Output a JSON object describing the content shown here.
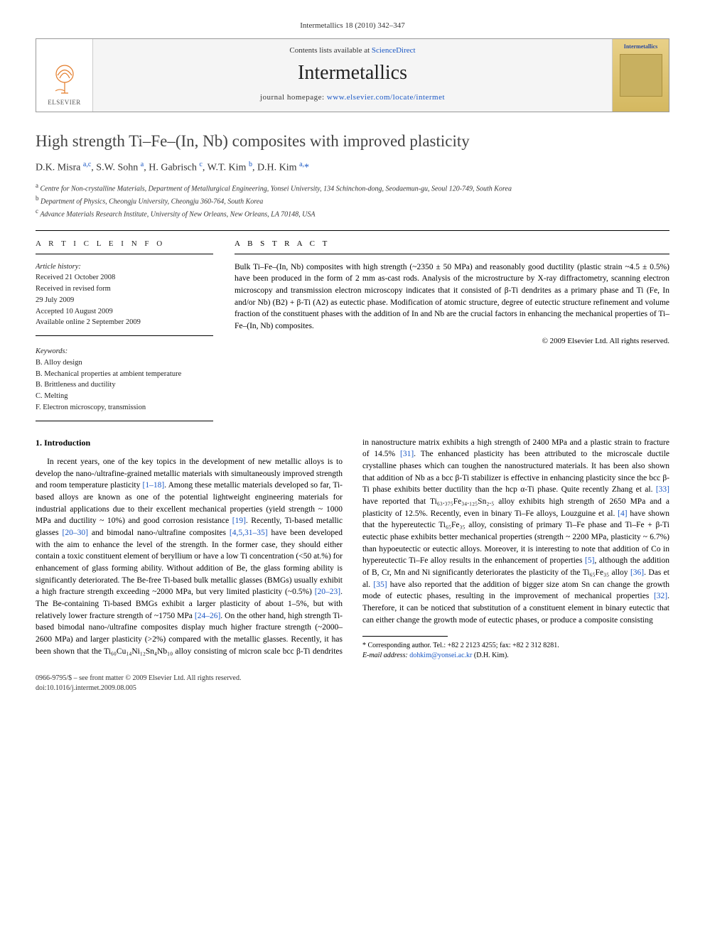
{
  "header": {
    "citation": "Intermetallics 18 (2010) 342–347"
  },
  "banner": {
    "publisher": "ELSEVIER",
    "contents_prefix": "Contents lists available at ",
    "contents_link": "ScienceDirect",
    "journal": "Intermetallics",
    "homepage_prefix": "journal homepage: ",
    "homepage_url": "www.elsevier.com/locate/intermet",
    "cover_label": "Intermetallics"
  },
  "title": "High strength Ti–Fe–(In, Nb) composites with improved plasticity",
  "authors_html": "D.K. Misra <sup>a,c</sup>, S.W. Sohn <sup>a</sup>, H. Gabrisch <sup>c</sup>, W.T. Kim <sup>b</sup>, D.H. Kim <sup>a,</sup><span class='star'>*</span>",
  "affiliations": {
    "a": "Centre for Non-crystalline Materials, Department of Metallurgical Engineering, Yonsei University, 134 Schinchon-dong, Seodaemun-gu, Seoul 120-749, South Korea",
    "b": "Department of Physics, Cheongju University, Cheongju 360-764, South Korea",
    "c": "Advance Materials Research Institute, University of New Orleans, New Orleans, LA 70148, USA"
  },
  "article_info": {
    "heading": "A R T I C L E   I N F O",
    "history_label": "Article history:",
    "history": [
      "Received 21 October 2008",
      "Received in revised form",
      "29 July 2009",
      "Accepted 10 August 2009",
      "Available online 2 September 2009"
    ],
    "keywords_label": "Keywords:",
    "keywords": [
      "B. Alloy design",
      "B. Mechanical properties at ambient temperature",
      "B. Brittleness and ductility",
      "C. Melting",
      "F. Electron microscopy, transmission"
    ]
  },
  "abstract": {
    "heading": "A B S T R A C T",
    "text": "Bulk Ti–Fe–(In, Nb) composites with high strength (~2350 ± 50 MPa) and reasonably good ductility (plastic strain ~4.5 ± 0.5%) have been produced in the form of 2 mm as-cast rods. Analysis of the microstructure by X-ray diffractometry, scanning electron microscopy and transmission electron microscopy indicates that it consisted of β-Ti dendrites as a primary phase and Ti (Fe, In and/or Nb) (B2) + β-Ti (A2) as eutectic phase. Modification of atomic structure, degree of eutectic structure refinement and volume fraction of the constituent phases with the addition of In and Nb are the crucial factors in enhancing the mechanical properties of Ti–Fe–(In, Nb) composites.",
    "copyright": "© 2009 Elsevier Ltd. All rights reserved."
  },
  "body": {
    "section_heading": "1. Introduction",
    "para1_a": "In recent years, one of the key topics in the development of new metallic alloys is to develop the nano-/ultrafine-grained metallic materials with simultaneously improved strength and room temperature plasticity ",
    "ref1": "[1–18]",
    "para1_b": ". Among these metallic materials developed so far, Ti-based alloys are known as one of the potential lightweight engineering materials for industrial applications due to their excellent mechanical properties (yield strength ~ 1000 MPa and ductility ~ 10%) and good corrosion resistance ",
    "ref2": "[19]",
    "para1_c": ". Recently, Ti-based metallic glasses ",
    "ref3": "[20–30]",
    "para1_d": " and bimodal nano-/ultrafine composites ",
    "ref4": "[4,5,31–35]",
    "para1_e": " have been developed with the aim to enhance the level of the strength. In the former case, they should either contain a toxic constituent element of beryllium or have a low Ti concentration (<50 at.%) for enhancement of glass forming ability. Without addition of Be, the glass forming ability is significantly deteriorated. The Be-free Ti-based bulk metallic glasses (BMGs) usually exhibit a high fracture strength exceeding ~2000 MPa, but very limited plasticity (~0.5%) ",
    "ref5": "[20–23]",
    "para1_f": ". The Be-containing Ti-based BMGs exhibit a larger plasticity of about 1–5%, but with relatively lower fracture strength of ~1750 MPa ",
    "ref6": "[24–26]",
    "para1_g": ". On the other hand, high strength Ti-based bimodal nano-/ultrafine ",
    "para2_a": "composites display much higher fracture strength (~2000–2600 MPa) and larger plasticity (>2%) compared with the metallic glasses. Recently, it has been shown that the Ti₆₀Cu₁₄Ni₁₂Sn₄Nb₁₀ alloy consisting of micron scale bcc β-Ti dendrites in nanostructure matrix exhibits a high strength of 2400 MPa and a plastic strain to fracture of 14.5% ",
    "ref7": "[31]",
    "para2_b": ". The enhanced plasticity has been attributed to the microscale ductile crystalline phases which can toughen the nanostructured materials. It has been also shown that addition of Nb as a bcc β-Ti stabilizer is effective in enhancing plasticity since the bcc β-Ti phase exhibits better ductility than the hcp α-Ti phase. Quite recently Zhang et al. ",
    "ref8": "[33]",
    "para2_c": " have reported that Ti₆₃.₃₇₅Fe₃₄.₁₂₅Sn₂.₅ alloy exhibits high strength of 2650 MPa and a plasticity of 12.5%. Recently, even in binary Ti–Fe alloys, Louzguine et al. ",
    "ref9": "[4]",
    "para2_d": " have shown that the hypereutectic Ti₆₅Fe₃₅ alloy, consisting of primary Ti–Fe phase and Ti–Fe + β-Ti eutectic phase exhibits better mechanical properties (strength ~ 2200 MPa, plasticity ~ 6.7%) than hypoeutectic or eutectic alloys. Moreover, it is interesting to note that addition of Co in hypereutectic Ti–Fe alloy results in the enhancement of properties ",
    "ref10": "[5]",
    "para2_e": ", although the addition of B, Cr, Mn and Ni significantly deteriorates the plasticity of the Ti₆₅Fe₃₅ alloy ",
    "ref11": "[36]",
    "para2_f": ". Das et al. ",
    "ref12": "[35]",
    "para2_g": " have also reported that the addition of bigger size atom Sn can change the growth mode of eutectic phases, resulting in the improvement of mechanical properties ",
    "ref13": "[32]",
    "para2_h": ". Therefore, it can be noticed that substitution of a constituent element in binary eutectic that can either change the growth mode of eutectic phases, or produce a composite consisting"
  },
  "footnotes": {
    "corr": "* Corresponding author. Tel.: +82 2 2123 4255; fax: +82 2 312 8281.",
    "email_label": "E-mail address: ",
    "email": "dohkim@yonsei.ac.kr",
    "email_suffix": " (D.H. Kim)."
  },
  "bottom": {
    "line1": "0966-9795/$ – see front matter © 2009 Elsevier Ltd. All rights reserved.",
    "line2": "doi:10.1016/j.intermet.2009.08.005"
  },
  "colors": {
    "link": "#1a57c4",
    "text": "#000000",
    "muted": "#333333"
  }
}
